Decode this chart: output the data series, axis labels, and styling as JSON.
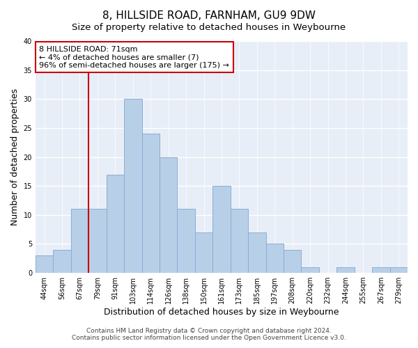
{
  "title": "8, HILLSIDE ROAD, FARNHAM, GU9 9DW",
  "subtitle": "Size of property relative to detached houses in Weybourne",
  "xlabel": "Distribution of detached houses by size in Weybourne",
  "ylabel": "Number of detached properties",
  "bin_labels": [
    "44sqm",
    "56sqm",
    "67sqm",
    "79sqm",
    "91sqm",
    "103sqm",
    "114sqm",
    "126sqm",
    "138sqm",
    "150sqm",
    "161sqm",
    "173sqm",
    "185sqm",
    "197sqm",
    "208sqm",
    "220sqm",
    "232sqm",
    "244sqm",
    "255sqm",
    "267sqm",
    "279sqm"
  ],
  "bar_values": [
    3,
    4,
    11,
    11,
    17,
    30,
    24,
    20,
    11,
    7,
    15,
    11,
    7,
    5,
    4,
    1,
    0,
    1,
    0,
    1,
    1
  ],
  "bar_color": "#b8cfe8",
  "bar_edge_color": "#8aadd4",
  "vline_x_index": 2,
  "vline_color": "#cc0000",
  "annotation_text": "8 HILLSIDE ROAD: 71sqm\n← 4% of detached houses are smaller (7)\n96% of semi-detached houses are larger (175) →",
  "annotation_box_edge_color": "#cc0000",
  "annotation_box_face_color": "#ffffff",
  "ylim": [
    0,
    40
  ],
  "yticks": [
    0,
    5,
    10,
    15,
    20,
    25,
    30,
    35,
    40
  ],
  "footer_line1": "Contains HM Land Registry data © Crown copyright and database right 2024.",
  "footer_line2": "Contains public sector information licensed under the Open Government Licence v3.0.",
  "fig_bg_color": "#ffffff",
  "plot_bg_color": "#e8eef7",
  "title_fontsize": 11,
  "subtitle_fontsize": 9.5,
  "axis_label_fontsize": 9,
  "tick_fontsize": 7,
  "annotation_fontsize": 8
}
